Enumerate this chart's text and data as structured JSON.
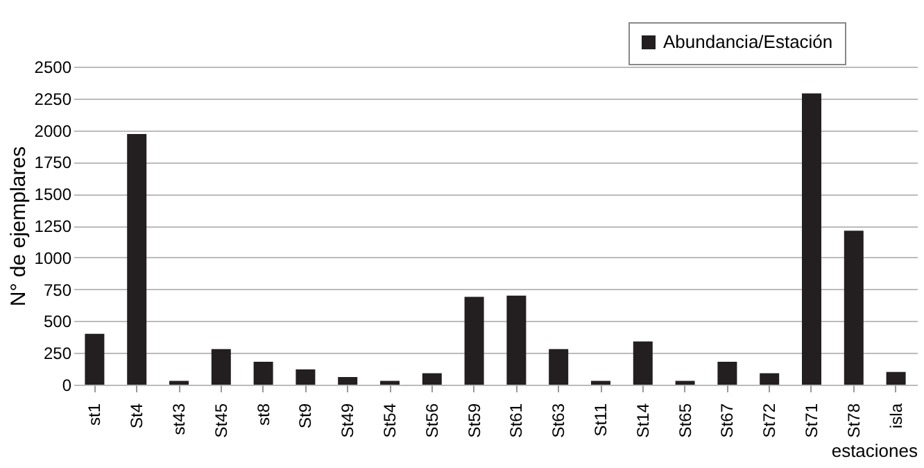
{
  "chart_data": {
    "type": "bar",
    "xlabel": "estaciones",
    "ylabel": "N° de ejemplares",
    "categories": [
      "st1",
      "St4",
      "st43",
      "St45",
      "st8",
      "St9",
      "St49",
      "St54",
      "St56",
      "St59",
      "St61",
      "St63",
      "St11",
      "St14",
      "St65",
      "St67",
      "St72",
      "St71",
      "St78",
      "isla"
    ],
    "series": [
      {
        "name": "Abundancia/Estación",
        "color": "#231f20",
        "values": [
          400,
          1970,
          30,
          280,
          180,
          120,
          60,
          30,
          90,
          690,
          700,
          280,
          30,
          340,
          30,
          180,
          90,
          2290,
          1210,
          100
        ]
      }
    ],
    "ylim": [
      0,
      2500
    ],
    "yticks": [
      0,
      250,
      500,
      750,
      1000,
      1250,
      1500,
      1750,
      2000,
      2250,
      2500
    ],
    "grid": "y",
    "legend": "top right"
  }
}
